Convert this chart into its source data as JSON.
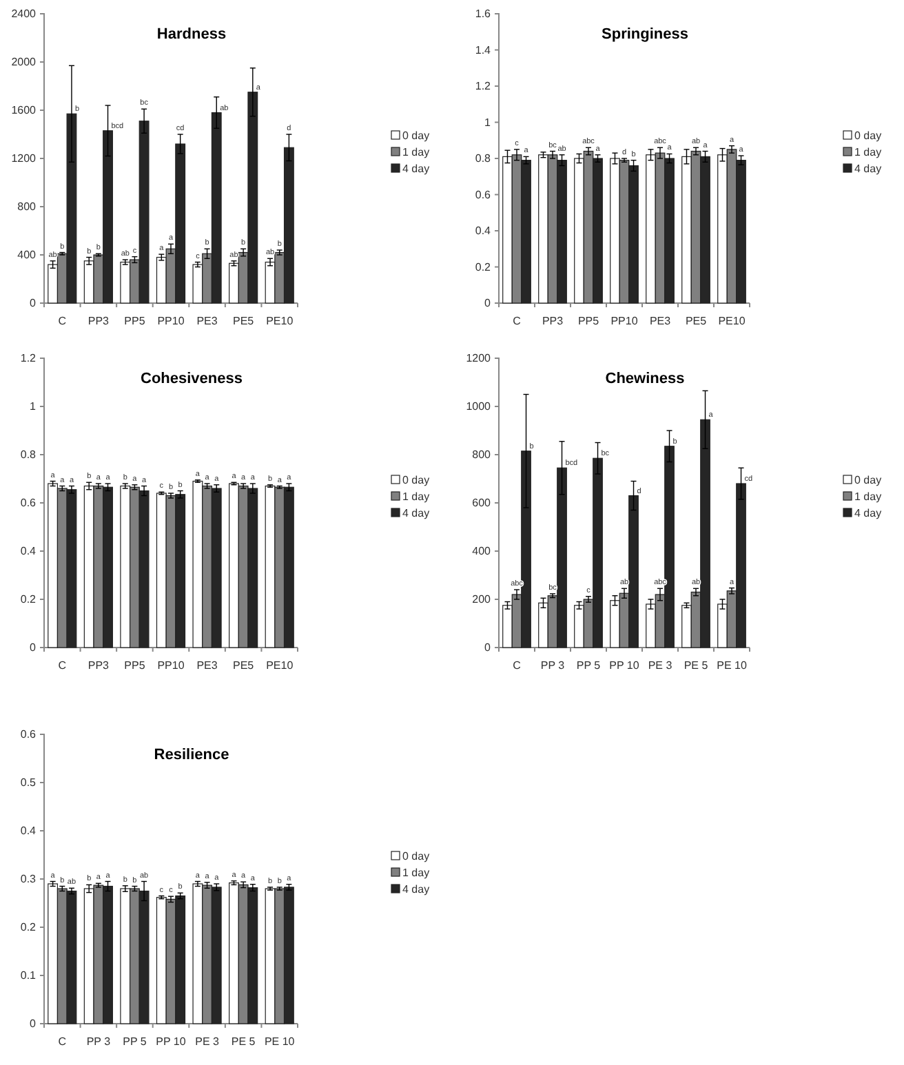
{
  "chart_data": [
    {
      "type": "bar",
      "title": "Hardness",
      "categories": [
        "C",
        "PP3",
        "PP5",
        "PP10",
        "PE3",
        "PE5",
        "PE10"
      ],
      "ylim": [
        0,
        2400
      ],
      "yticks": [
        0,
        400,
        800,
        1200,
        1600,
        2000,
        2400
      ],
      "legend": "right",
      "series": [
        {
          "name": "0 day",
          "color": "#ffffff",
          "values": [
            320,
            350,
            340,
            380,
            320,
            330,
            340
          ],
          "errors": [
            30,
            30,
            20,
            25,
            20,
            20,
            30
          ],
          "value_labels": [
            "ab",
            "b",
            "ab",
            "a",
            "c",
            "ab",
            "ab"
          ]
        },
        {
          "name": "1 day",
          "color": "#808080",
          "values": [
            410,
            400,
            360,
            450,
            410,
            420,
            420
          ],
          "errors": [
            10,
            10,
            25,
            40,
            40,
            30,
            20
          ],
          "value_labels": [
            "b",
            "b",
            "c",
            "a",
            "b",
            "b",
            "b"
          ]
        },
        {
          "name": "4 day",
          "color": "#262626",
          "values": [
            1570,
            1430,
            1510,
            1320,
            1580,
            1750,
            1290
          ],
          "errors": [
            400,
            210,
            100,
            80,
            130,
            200,
            110
          ],
          "value_labels": [
            "b",
            "bcd",
            "bc",
            "cd",
            "ab",
            "a",
            "d"
          ]
        }
      ]
    },
    {
      "type": "bar",
      "title": "Springiness",
      "categories": [
        "C",
        "PP3",
        "PP5",
        "PP10",
        "PE3",
        "PE5",
        "PE10"
      ],
      "ylim": [
        0,
        1.6
      ],
      "yticks": [
        0,
        0.2,
        0.4,
        0.6,
        0.8,
        1,
        1.2,
        1.4,
        1.6
      ],
      "legend": "right",
      "series": [
        {
          "name": "0 day",
          "color": "#ffffff",
          "values": [
            0.81,
            0.82,
            0.8,
            0.8,
            0.82,
            0.81,
            0.82
          ],
          "errors": [
            0.035,
            0.015,
            0.025,
            0.03,
            0.03,
            0.04,
            0.035
          ]
        },
        {
          "name": "1 day",
          "color": "#808080",
          "values": [
            0.82,
            0.82,
            0.84,
            0.79,
            0.83,
            0.84,
            0.85
          ],
          "errors": [
            0.03,
            0.02,
            0.02,
            0.01,
            0.03,
            0.02,
            0.02
          ],
          "value_labels": [
            "c",
            "bc",
            "abc",
            "d",
            "abc",
            "ab",
            "a"
          ]
        },
        {
          "name": "4 day",
          "color": "#262626",
          "values": [
            0.79,
            0.79,
            0.8,
            0.76,
            0.8,
            0.81,
            0.79
          ],
          "errors": [
            0.02,
            0.03,
            0.02,
            0.03,
            0.025,
            0.03,
            0.025
          ],
          "value_labels": [
            "a",
            "ab",
            "a",
            "b",
            "a",
            "a",
            "a"
          ]
        }
      ]
    },
    {
      "type": "bar",
      "title": "Cohesiveness",
      "categories": [
        "C",
        "PP3",
        "PP5",
        "PP10",
        "PE3",
        "PE5",
        "PE10"
      ],
      "ylim": [
        0,
        1.2
      ],
      "yticks": [
        0,
        0.2,
        0.4,
        0.6,
        0.8,
        1,
        1.2
      ],
      "legend": "right",
      "series": [
        {
          "name": "0 day",
          "color": "#ffffff",
          "values": [
            0.68,
            0.67,
            0.67,
            0.64,
            0.69,
            0.68,
            0.67
          ],
          "errors": [
            0.01,
            0.015,
            0.01,
            0.005,
            0.005,
            0.005,
            0.005
          ],
          "value_labels": [
            "a",
            "b",
            "b",
            "c",
            "a",
            "a",
            "b"
          ]
        },
        {
          "name": "1 day",
          "color": "#808080",
          "values": [
            0.66,
            0.67,
            0.665,
            0.63,
            0.67,
            0.67,
            0.665
          ],
          "errors": [
            0.01,
            0.01,
            0.01,
            0.01,
            0.01,
            0.01,
            0.005
          ],
          "value_labels": [
            "a",
            "a",
            "a",
            "b",
            "a",
            "a",
            "a"
          ]
        },
        {
          "name": "4 day",
          "color": "#262626",
          "values": [
            0.655,
            0.665,
            0.65,
            0.635,
            0.66,
            0.66,
            0.665
          ],
          "errors": [
            0.015,
            0.015,
            0.02,
            0.015,
            0.015,
            0.02,
            0.015
          ],
          "value_labels": [
            "a",
            "a",
            "a",
            "b",
            "a",
            "a",
            "a"
          ]
        }
      ]
    },
    {
      "type": "bar",
      "title": "Chewiness",
      "categories": [
        "C",
        "PP 3",
        "PP 5",
        "PP 10",
        "PE 3",
        "PE 5",
        "PE 10"
      ],
      "ylim": [
        0,
        1200
      ],
      "yticks": [
        0,
        200,
        400,
        600,
        800,
        1000,
        1200
      ],
      "legend": "right",
      "series": [
        {
          "name": "0 day",
          "color": "#ffffff",
          "values": [
            175,
            185,
            175,
            195,
            180,
            175,
            180
          ],
          "errors": [
            15,
            20,
            15,
            20,
            20,
            10,
            20
          ]
        },
        {
          "name": "1 day",
          "color": "#808080",
          "values": [
            220,
            215,
            200,
            225,
            220,
            230,
            235
          ],
          "errors": [
            20,
            8,
            12,
            20,
            25,
            15,
            12
          ],
          "value_labels": [
            "abc",
            "bc",
            "c",
            "ab",
            "abc",
            "ab",
            "a"
          ]
        },
        {
          "name": "4 day",
          "color": "#262626",
          "values": [
            815,
            745,
            785,
            630,
            835,
            945,
            680
          ],
          "errors": [
            235,
            110,
            65,
            60,
            65,
            120,
            65
          ],
          "value_labels": [
            "b",
            "bcd",
            "bc",
            "d",
            "b",
            "a",
            "cd"
          ]
        }
      ]
    },
    {
      "type": "bar",
      "title": "Resilience",
      "categories": [
        "C",
        "PP 3",
        "PP 5",
        "PP 10",
        "PE 3",
        "PE 5",
        "PE 10"
      ],
      "ylim": [
        0,
        0.6
      ],
      "yticks": [
        0,
        0.1,
        0.2,
        0.3,
        0.4,
        0.5,
        0.6
      ],
      "legend": "right",
      "series": [
        {
          "name": "0 day",
          "color": "#ffffff",
          "values": [
            0.29,
            0.28,
            0.28,
            0.262,
            0.29,
            0.292,
            0.28
          ],
          "errors": [
            0.005,
            0.008,
            0.006,
            0.003,
            0.005,
            0.004,
            0.003
          ],
          "value_labels": [
            "a",
            "b",
            "b",
            "c",
            "a",
            "a",
            "b"
          ]
        },
        {
          "name": "1 day",
          "color": "#808080",
          "values": [
            0.28,
            0.287,
            0.28,
            0.258,
            0.287,
            0.288,
            0.28
          ],
          "errors": [
            0.005,
            0.004,
            0.005,
            0.006,
            0.006,
            0.006,
            0.003
          ],
          "value_labels": [
            "b",
            "a",
            "b",
            "c",
            "a",
            "a",
            "b"
          ]
        },
        {
          "name": "4 day",
          "color": "#262626",
          "values": [
            0.275,
            0.285,
            0.275,
            0.265,
            0.283,
            0.282,
            0.283
          ],
          "errors": [
            0.006,
            0.01,
            0.02,
            0.006,
            0.007,
            0.007,
            0.006
          ],
          "value_labels": [
            "ab",
            "a",
            "ab",
            "b",
            "a",
            "a",
            "a"
          ]
        }
      ]
    }
  ]
}
